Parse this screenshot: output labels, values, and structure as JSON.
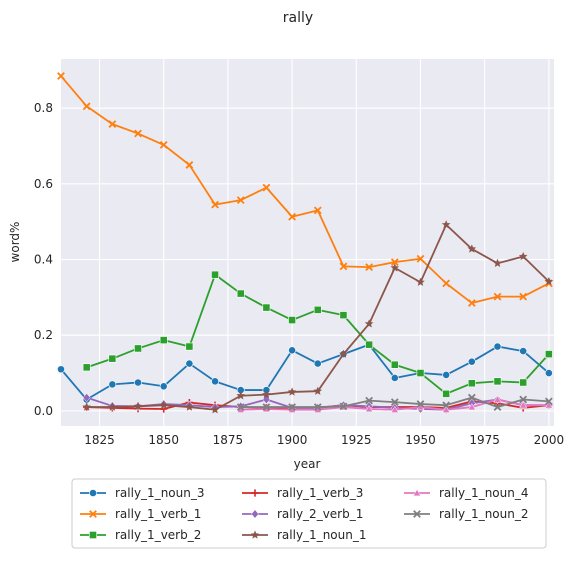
{
  "chart_data": {
    "type": "line",
    "title": "rally",
    "xlabel": "year",
    "ylabel": "word%",
    "xlim": [
      1810,
      2002
    ],
    "ylim": [
      -0.04,
      0.93
    ],
    "xticks": [
      1825,
      1850,
      1875,
      1900,
      1925,
      1950,
      1975,
      2000
    ],
    "yticks": [
      0.0,
      0.2,
      0.4,
      0.6,
      0.8
    ],
    "ytick_labels": [
      "0.0",
      "0.2",
      "0.4",
      "0.6",
      "0.8"
    ],
    "grid": true,
    "legend_position": "bottom",
    "series": [
      {
        "name": "rally_1_noun_3",
        "color": "#1f77b4",
        "marker": "circle",
        "points": [
          [
            1810,
            0.11
          ],
          [
            1820,
            0.03
          ],
          [
            1830,
            0.07
          ],
          [
            1840,
            0.075
          ],
          [
            1850,
            0.065
          ],
          [
            1860,
            0.125
          ],
          [
            1870,
            0.078
          ],
          [
            1880,
            0.055
          ],
          [
            1890,
            0.055
          ],
          [
            1900,
            0.16
          ],
          [
            1910,
            0.125
          ],
          [
            1920,
            0.15
          ],
          [
            1930,
            0.175
          ],
          [
            1940,
            0.087
          ],
          [
            1950,
            0.1
          ],
          [
            1960,
            0.095
          ],
          [
            1970,
            0.13
          ],
          [
            1980,
            0.17
          ],
          [
            1990,
            0.158
          ],
          [
            2000,
            0.1
          ]
        ]
      },
      {
        "name": "rally_1_verb_1",
        "color": "#ff7f0e",
        "marker": "x",
        "points": [
          [
            1810,
            0.885
          ],
          [
            1820,
            0.805
          ],
          [
            1830,
            0.758
          ],
          [
            1840,
            0.733
          ],
          [
            1850,
            0.703
          ],
          [
            1860,
            0.65
          ],
          [
            1870,
            0.545
          ],
          [
            1880,
            0.557
          ],
          [
            1890,
            0.59
          ],
          [
            1900,
            0.513
          ],
          [
            1910,
            0.53
          ],
          [
            1920,
            0.382
          ],
          [
            1930,
            0.38
          ],
          [
            1940,
            0.393
          ],
          [
            1950,
            0.402
          ],
          [
            1960,
            0.337
          ],
          [
            1970,
            0.285
          ],
          [
            1980,
            0.302
          ],
          [
            1990,
            0.302
          ],
          [
            2000,
            0.337
          ]
        ]
      },
      {
        "name": "rally_1_verb_2",
        "color": "#2ca02c",
        "marker": "square",
        "points": [
          [
            1820,
            0.115
          ],
          [
            1830,
            0.138
          ],
          [
            1840,
            0.165
          ],
          [
            1850,
            0.187
          ],
          [
            1860,
            0.17
          ],
          [
            1870,
            0.36
          ],
          [
            1880,
            0.31
          ],
          [
            1890,
            0.273
          ],
          [
            1900,
            0.24
          ],
          [
            1910,
            0.267
          ],
          [
            1920,
            0.253
          ],
          [
            1930,
            0.175
          ],
          [
            1940,
            0.122
          ],
          [
            1950,
            0.1
          ],
          [
            1960,
            0.045
          ],
          [
            1970,
            0.073
          ],
          [
            1980,
            0.078
          ],
          [
            1990,
            0.075
          ],
          [
            2000,
            0.15
          ]
        ]
      },
      {
        "name": "rally_1_verb_3",
        "color": "#d62728",
        "marker": "plus",
        "points": [
          [
            1820,
            0.01
          ],
          [
            1830,
            0.008
          ],
          [
            1840,
            0.006
          ],
          [
            1850,
            0.005
          ],
          [
            1860,
            0.022
          ],
          [
            1870,
            0.015
          ],
          [
            1880,
            0.01
          ],
          [
            1890,
            0.008
          ],
          [
            1900,
            0.008
          ],
          [
            1910,
            0.008
          ],
          [
            1920,
            0.015
          ],
          [
            1930,
            0.01
          ],
          [
            1940,
            0.01
          ],
          [
            1950,
            0.01
          ],
          [
            1960,
            0.008
          ],
          [
            1970,
            0.025
          ],
          [
            1980,
            0.02
          ],
          [
            1990,
            0.008
          ],
          [
            2000,
            0.015
          ]
        ]
      },
      {
        "name": "rally_2_verb_1",
        "color": "#9467bd",
        "marker": "diamond",
        "points": [
          [
            1820,
            0.035
          ],
          [
            1830,
            0.013
          ],
          [
            1840,
            0.012
          ],
          [
            1850,
            0.018
          ],
          [
            1860,
            0.015
          ],
          [
            1870,
            0.01
          ],
          [
            1880,
            0.012
          ],
          [
            1890,
            0.03
          ],
          [
            1900,
            0.008
          ],
          [
            1910,
            0.008
          ],
          [
            1920,
            0.015
          ],
          [
            1930,
            0.012
          ],
          [
            1940,
            0.008
          ],
          [
            1950,
            0.005
          ],
          [
            1960,
            0.003
          ],
          [
            1970,
            0.02
          ],
          [
            1980,
            0.03
          ],
          [
            1990,
            0.015
          ],
          [
            2000,
            0.015
          ]
        ]
      },
      {
        "name": "rally_1_noun_1",
        "color": "#8c564b",
        "marker": "star",
        "points": [
          [
            1820,
            0.01
          ],
          [
            1830,
            0.01
          ],
          [
            1840,
            0.012
          ],
          [
            1850,
            0.015
          ],
          [
            1860,
            0.01
          ],
          [
            1870,
            0.003
          ],
          [
            1880,
            0.04
          ],
          [
            1890,
            0.043
          ],
          [
            1900,
            0.05
          ],
          [
            1910,
            0.052
          ],
          [
            1920,
            0.15
          ],
          [
            1930,
            0.23
          ],
          [
            1940,
            0.378
          ],
          [
            1950,
            0.34
          ],
          [
            1960,
            0.492
          ],
          [
            1970,
            0.428
          ],
          [
            1980,
            0.39
          ],
          [
            1990,
            0.408
          ],
          [
            2000,
            0.342
          ]
        ]
      },
      {
        "name": "rally_1_noun_4",
        "color": "#e377c2",
        "marker": "triangle",
        "points": [
          [
            1880,
            0.003
          ],
          [
            1890,
            0.005
          ],
          [
            1900,
            0.003
          ],
          [
            1910,
            0.003
          ],
          [
            1920,
            0.01
          ],
          [
            1930,
            0.005
          ],
          [
            1940,
            0.003
          ],
          [
            1950,
            0.01
          ],
          [
            1960,
            0.003
          ],
          [
            1970,
            0.01
          ],
          [
            1980,
            0.03
          ],
          [
            1990,
            0.015
          ],
          [
            2000,
            0.015
          ]
        ]
      },
      {
        "name": "rally_1_noun_2",
        "color": "#7f7f7f",
        "marker": "x",
        "points": [
          [
            1880,
            0.01
          ],
          [
            1890,
            0.01
          ],
          [
            1900,
            0.01
          ],
          [
            1910,
            0.01
          ],
          [
            1920,
            0.012
          ],
          [
            1930,
            0.027
          ],
          [
            1940,
            0.023
          ],
          [
            1950,
            0.018
          ],
          [
            1960,
            0.015
          ],
          [
            1970,
            0.035
          ],
          [
            1980,
            0.01
          ],
          [
            1990,
            0.03
          ],
          [
            2000,
            0.025
          ]
        ]
      }
    ]
  }
}
